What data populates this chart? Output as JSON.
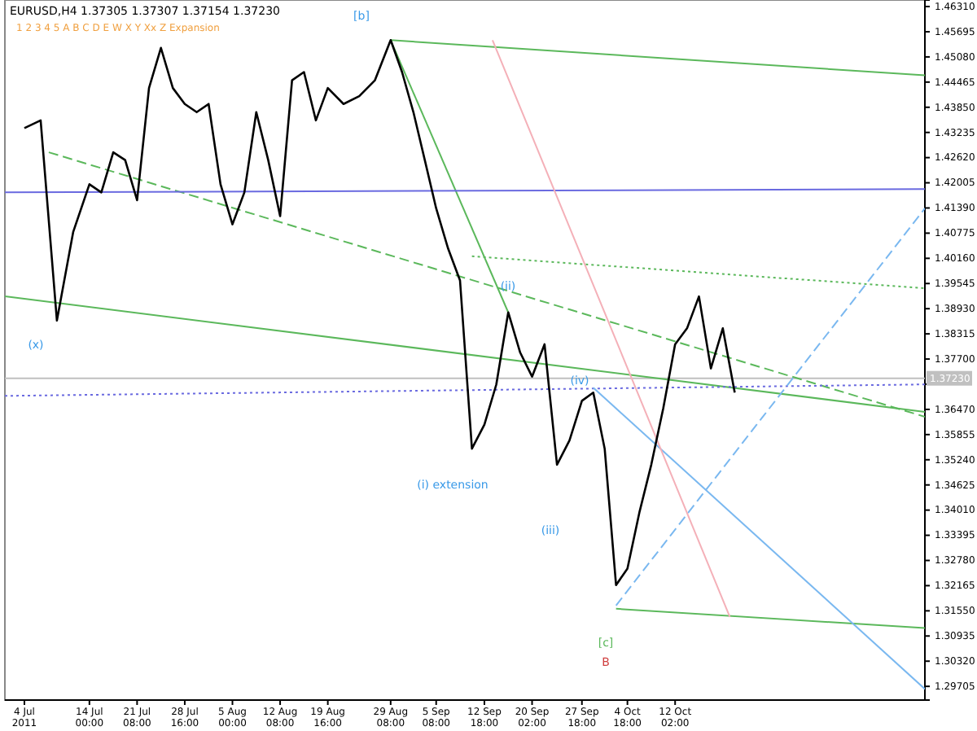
{
  "chart_data": {
    "type": "line",
    "title": "EURUSD,H4  1.37305 1.37307 1.37154 1.37230",
    "annotations": [
      "1  2  3  4  5  A  B  C  D  E  W  X  Y  Xx  Z  Expansion",
      "(x)",
      "[b]",
      "(ii)",
      "(i) extension",
      "(iii)",
      "(iv)",
      "[c]",
      "B"
    ],
    "xlim": [
      "2011-07-01T00:00",
      "2011-11-19T12:00"
    ],
    "xticks": [
      {
        "value": "2011-07-04T00:00",
        "label": "4 Jul 2011"
      },
      {
        "value": "2011-07-14T00:00",
        "label": "14 Jul 00:00"
      },
      {
        "value": "2011-07-21T08:00",
        "label": "21 Jul 08:00"
      },
      {
        "value": "2011-07-28T16:00",
        "label": "28 Jul 16:00"
      },
      {
        "value": "2011-08-05T00:00",
        "label": "5 Aug 00:00"
      },
      {
        "value": "2011-08-12T08:00",
        "label": "12 Aug 08:00"
      },
      {
        "value": "2011-08-19T16:00",
        "label": "19 Aug 16:00"
      },
      {
        "value": "2011-08-29T08:00",
        "label": "29 Aug 08:00"
      },
      {
        "value": "2011-09-05T08:00",
        "label": "5 Sep 08:00"
      },
      {
        "value": "2011-09-12T18:00",
        "label": "12 Sep 18:00"
      },
      {
        "value": "2011-09-20T02:00",
        "label": "20 Sep 02:00"
      },
      {
        "value": "2011-09-27T18:00",
        "label": "27 Sep 18:00"
      },
      {
        "value": "2011-10-04T18:00",
        "label": "4 Oct 18:00"
      },
      {
        "value": "2011-10-12T02:00",
        "label": "12 Oct 02:00"
      }
    ],
    "ylim": [
      1.2937,
      1.4647
    ],
    "yticks": [
      {
        "value": 1.29705,
        "label": "1.29705"
      },
      {
        "value": 1.3032,
        "label": "1.30320"
      },
      {
        "value": 1.30935,
        "label": "1.30935"
      },
      {
        "value": 1.3155,
        "label": "1.31550"
      },
      {
        "value": 1.32165,
        "label": "1.32165"
      },
      {
        "value": 1.3278,
        "label": "1.32780"
      },
      {
        "value": 1.33395,
        "label": "1.33395"
      },
      {
        "value": 1.3401,
        "label": "1.34010"
      },
      {
        "value": 1.34625,
        "label": "1.34625"
      },
      {
        "value": 1.3524,
        "label": "1.35240"
      },
      {
        "value": 1.35855,
        "label": "1.35855"
      },
      {
        "value": 1.3647,
        "label": "1.36470"
      },
      {
        "value": 1.37085,
        "label": null
      },
      {
        "value": 1.377,
        "label": "1.37700"
      },
      {
        "value": 1.38315,
        "label": "1.38315"
      },
      {
        "value": 1.3893,
        "label": "1.38930"
      },
      {
        "value": 1.39545,
        "label": "1.39545"
      },
      {
        "value": 1.4016,
        "label": "1.40160"
      },
      {
        "value": 1.40775,
        "label": "1.40775"
      },
      {
        "value": 1.4139,
        "label": "1.41390"
      },
      {
        "value": 1.42005,
        "label": "1.42005"
      },
      {
        "value": 1.4262,
        "label": "1.42620"
      },
      {
        "value": 1.43235,
        "label": "1.43235"
      },
      {
        "value": 1.4385,
        "label": "1.43850"
      },
      {
        "value": 1.44465,
        "label": "1.44465"
      },
      {
        "value": 1.4508,
        "label": "1.45080"
      },
      {
        "value": 1.45695,
        "label": "1.45695"
      },
      {
        "value": 1.4631,
        "label": "1.46310"
      }
    ],
    "ref_lines": [
      {
        "axis": "y",
        "value": 1.3723,
        "label": "1.37230",
        "color": "#c0c0c0"
      }
    ],
    "series": [
      {
        "color": "#000000",
        "x": [
          "2011-07-04T00:00",
          "2011-07-06T12:00",
          "2011-07-09T00:00",
          "2011-07-11T12:00",
          "2011-07-14T00:00",
          "2011-07-15T20:00",
          "2011-07-17T16:00",
          "2011-07-19T12:00",
          "2011-07-21T08:00",
          "2011-07-23T04:00",
          "2011-07-25T00:00",
          "2011-07-26T20:00",
          "2011-07-28T16:00",
          "2011-07-30T12:00",
          "2011-08-01T08:00",
          "2011-08-03T04:00",
          "2011-08-05T00:00",
          "2011-08-06T20:00",
          "2011-08-08T16:00",
          "2011-08-10T12:00",
          "2011-08-12T08:00",
          "2011-08-14T04:00",
          "2011-08-16T00:00",
          "2011-08-17T20:00",
          "2011-08-19T16:00",
          "2011-08-22T02:00",
          "2011-08-24T12:00",
          "2011-08-26T22:00",
          "2011-08-29T08:00",
          "2011-08-31T02:00",
          "2011-09-01T20:00",
          "2011-09-03T14:00",
          "2011-09-05T08:00",
          "2011-09-07T04:00",
          "2011-09-09T00:00",
          "2011-09-10T20:00",
          "2011-09-12T18:00",
          "2011-09-14T14:00",
          "2011-09-16T10:00",
          "2011-09-18T06:00",
          "2011-09-20T02:00",
          "2011-09-22T00:00",
          "2011-09-23T22:00",
          "2011-09-25T20:00",
          "2011-09-27T18:00",
          "2011-09-29T12:00",
          "2011-10-01T06:00",
          "2011-10-03T00:00",
          "2011-10-04T18:00",
          "2011-10-06T14:00",
          "2011-10-08T10:00",
          "2011-10-10T06:00",
          "2011-10-12T02:00",
          "2011-10-13T22:00",
          "2011-10-15T18:00",
          "2011-10-17T14:00",
          "2011-10-19T10:00",
          "2011-10-21T06:00"
        ],
        "values": [
          1.4334,
          1.4353,
          1.3864,
          1.408,
          1.4197,
          1.4177,
          1.4275,
          1.4256,
          1.4158,
          1.4432,
          1.453,
          1.4432,
          1.4393,
          1.4373,
          1.4393,
          1.4197,
          1.4099,
          1.4177,
          1.4373,
          1.4256,
          1.4119,
          1.4451,
          1.4471,
          1.4353,
          1.4432,
          1.4393,
          1.4412,
          1.4451,
          1.4549,
          1.4471,
          1.4373,
          1.4256,
          1.4138,
          1.404,
          1.3962,
          1.3551,
          1.361,
          1.3708,
          1.3884,
          1.3786,
          1.3727,
          1.3806,
          1.3512,
          1.3571,
          1.3668,
          1.3688,
          1.3551,
          1.3218,
          1.3258,
          1.3395,
          1.3512,
          1.3649,
          1.3806,
          1.3845,
          1.3923,
          1.3747,
          1.3845,
          1.3688
        ]
      },
      {
        "color": "#5bb85b",
        "x": [
          "2011-08-29T08:00",
          "2011-09-16T10:00"
        ],
        "values": [
          1.4549,
          1.3884
        ]
      },
      {
        "color": "#5bb85b",
        "x": [
          "2011-08-29T08:00",
          "2011-11-19T12:00"
        ],
        "values": [
          1.4549,
          1.4463
        ]
      },
      {
        "color": "#5bb85b",
        "x": [
          "2011-07-01T00:00",
          "2011-11-19T12:00"
        ],
        "values": [
          1.3923,
          1.3641
        ]
      },
      {
        "color": "#5bb85b",
        "line_style": "dashed",
        "x": [
          "2011-07-07T18:00",
          "2011-11-19T12:00"
        ],
        "values": [
          1.4275,
          1.3629
        ]
      },
      {
        "color": "#5bb85b",
        "line_style": "dotted",
        "x": [
          "2011-09-10T20:00",
          "2011-11-19T12:00"
        ],
        "values": [
          1.4021,
          1.3943
        ]
      },
      {
        "color": "#5bb85b",
        "x": [
          "2011-10-03T00:00",
          "2011-11-19T12:00"
        ],
        "values": [
          1.316,
          1.3113
        ]
      },
      {
        "color": "#6a6ae0",
        "x": [
          "2011-07-01T00:00",
          "2011-11-19T12:00"
        ],
        "values": [
          1.4177,
          1.4185
        ]
      },
      {
        "color": "#6a6ae0",
        "line_style": "dotted",
        "x": [
          "2011-07-01T00:00",
          "2011-11-19T12:00"
        ],
        "values": [
          1.368,
          1.3708
        ]
      },
      {
        "color": "#7ab8f0",
        "x": [
          "2011-09-29T12:00",
          "2011-11-19T12:00"
        ],
        "values": [
          1.37,
          1.2964
        ]
      },
      {
        "color": "#7ab8f0",
        "line_style": "dashed",
        "x": [
          "2011-10-03T00:00",
          "2011-11-19T12:00"
        ],
        "values": [
          1.3168,
          1.4138
        ]
      },
      {
        "color": "#f4b0b8",
        "x": [
          "2011-09-14T00:00",
          "2011-10-20T12:00"
        ],
        "values": [
          1.4549,
          1.314
        ]
      }
    ]
  }
}
